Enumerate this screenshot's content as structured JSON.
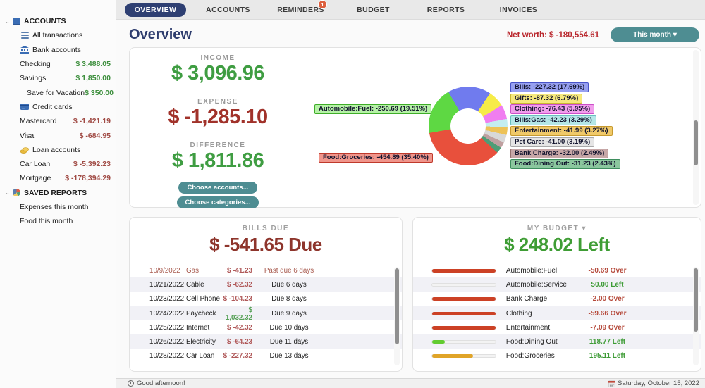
{
  "nav": {
    "tabs": [
      {
        "label": "OVERVIEW",
        "active": true
      },
      {
        "label": "ACCOUNTS"
      },
      {
        "label": "REMINDERS"
      },
      {
        "label": "BUDGET"
      },
      {
        "label": "REPORTS"
      },
      {
        "label": "INVOICES"
      }
    ],
    "reminders_badge": "1"
  },
  "sidebar": {
    "accounts_header": "ACCOUNTS",
    "items": [
      {
        "label": "All transactions"
      },
      {
        "label": "Bank accounts"
      },
      {
        "label": "Checking",
        "value": "$ 3,488.05"
      },
      {
        "label": "Savings",
        "value": "$ 1,850.00"
      },
      {
        "label": "Save for Vacation",
        "value": "$ 350.00"
      },
      {
        "label": "Credit cards"
      },
      {
        "label": "Mastercard",
        "value": "$ -1,421.19"
      },
      {
        "label": "Visa",
        "value": "$ -684.95"
      },
      {
        "label": "Loan accounts"
      },
      {
        "label": "Car Loan",
        "value": "$ -5,392.23"
      },
      {
        "label": "Mortgage",
        "value": "$ -178,394.29"
      }
    ],
    "saved_reports_header": "SAVED REPORTS",
    "reports": [
      "Expenses this month",
      "Food this month"
    ]
  },
  "header": {
    "title": "Overview",
    "net_worth": "Net worth: $ -180,554.61",
    "period_button": "This month ▾"
  },
  "overview": {
    "income_label": "INCOME",
    "income": "$ 3,096.96",
    "expense_label": "EXPENSE",
    "expense": "$ -1,285.10",
    "difference_label": "DIFFERENCE",
    "difference": "$ 1,811.86",
    "choose_accounts": "Choose accounts...",
    "choose_categories": "Choose categories..."
  },
  "chart_data": {
    "type": "pie",
    "title": "",
    "donut": true,
    "start_angle_deg": -30,
    "slices": [
      {
        "name": "Bills",
        "value": -227.32,
        "pct": 17.69,
        "color": "#707bee",
        "label": "Bills: -227.32 (17.69%)",
        "label_bg": "#97a0f0",
        "label_border": "#4853c8"
      },
      {
        "name": "Gifts",
        "value": -87.32,
        "pct": 6.79,
        "color": "#f6ec48",
        "label": "Gifts: -87.32 (6.79%)",
        "label_bg": "#f6e87c",
        "label_border": "#cbb832"
      },
      {
        "name": "Clothing",
        "value": -76.43,
        "pct": 5.95,
        "color": "#f07ef0",
        "label": "Clothing: -76.43 (5.95%)",
        "label_bg": "#f19eec",
        "label_border": "#cc4fc8"
      },
      {
        "name": "Bills:Gas",
        "value": -42.23,
        "pct": 3.29,
        "color": "#c4edf0",
        "label": "Bills:Gas: -42.23 (3.29%)",
        "label_bg": "#b4e7e7",
        "label_border": "#6abfbf"
      },
      {
        "name": "Entertainment",
        "value": -41.99,
        "pct": 3.27,
        "color": "#edc257",
        "label": "Entertainment: -41.99 (3.27%)",
        "label_bg": "#f0c969",
        "label_border": "#c79a2e"
      },
      {
        "name": "Pet Care",
        "value": -41.0,
        "pct": 3.19,
        "color": "#d8d8d8",
        "label": "Pet Care: -41.00 (3.19%)",
        "label_bg": "#e5e5e5",
        "label_border": "#a9a9a9"
      },
      {
        "name": "Bank Charge",
        "value": -32.0,
        "pct": 2.49,
        "color": "#bfa0a0",
        "label": "Bank Charge: -32.00 (2.49%)",
        "label_bg": "#c7a7a7",
        "label_border": "#95716e"
      },
      {
        "name": "Food:Dining Out",
        "value": -31.23,
        "pct": 2.43,
        "color": "#4f9d76",
        "label": "Food:Dining Out: -31.23 (2.43%)",
        "label_bg": "#8bc79e",
        "label_border": "#3e8e5e"
      },
      {
        "name": "Food:Groceries",
        "value": -454.89,
        "pct": 35.4,
        "color": "#e8503c",
        "label": "Food:Groceries: -454.89 (35.40%)",
        "label_bg": "#f0958b",
        "label_border": "#bf392b"
      },
      {
        "name": "Automobile:Fuel",
        "value": -250.69,
        "pct": 19.51,
        "color": "#5ed843",
        "label": "Automobile:Fuel: -250.69 (19.51%)",
        "label_bg": "#b6f1a7",
        "label_border": "#3ead27"
      }
    ]
  },
  "bills": {
    "title": "BILLS DUE",
    "total": "$ -541.65 Due",
    "rows": [
      {
        "date": "10/9/2022",
        "payee": "Gas",
        "amount": "$ -41.23",
        "due": "Past due 6 days",
        "past_due": true
      },
      {
        "date": "10/21/2022",
        "payee": "Cable",
        "amount": "$ -62.32",
        "due": "Due 6 days"
      },
      {
        "date": "10/23/2022",
        "payee": "Cell Phone",
        "amount": "$ -104.23",
        "due": "Due 8 days"
      },
      {
        "date": "10/24/2022",
        "payee": "Paycheck",
        "amount": "$ 1,032.32",
        "due": "Due 9 days",
        "positive": true
      },
      {
        "date": "10/25/2022",
        "payee": "Internet",
        "amount": "$ -42.32",
        "due": "Due 10 days"
      },
      {
        "date": "10/26/2022",
        "payee": "Electricity",
        "amount": "$ -64.23",
        "due": "Due 11 days"
      },
      {
        "date": "10/28/2022",
        "payee": "Car Loan",
        "amount": "$ -227.32",
        "due": "Due 13 days"
      }
    ]
  },
  "budget": {
    "title": "MY BUDGET ▾",
    "total": "$ 248.02 Left",
    "rows": [
      {
        "category": "Automobile:Fuel",
        "value": "-50.69 Over",
        "status": "over",
        "fill_pct": 100,
        "fill_color": "#cc4125"
      },
      {
        "category": "Automobile:Service",
        "value": "50.00 Left",
        "status": "left",
        "fill_pct": 0,
        "fill_color": "#6ed33b"
      },
      {
        "category": "Bank Charge",
        "value": "-2.00 Over",
        "status": "over",
        "fill_pct": 100,
        "fill_color": "#cc4125"
      },
      {
        "category": "Clothing",
        "value": "-59.66 Over",
        "status": "over",
        "fill_pct": 100,
        "fill_color": "#cc4125"
      },
      {
        "category": "Entertainment",
        "value": "-7.09 Over",
        "status": "over",
        "fill_pct": 100,
        "fill_color": "#cc4125"
      },
      {
        "category": "Food:Dining Out",
        "value": "118.77 Left",
        "status": "left",
        "fill_pct": 20,
        "fill_color": "#62cc30"
      },
      {
        "category": "Food:Groceries",
        "value": "195.11 Left",
        "status": "left",
        "fill_pct": 65,
        "fill_color": "#e0a428"
      }
    ]
  },
  "statusbar": {
    "greeting": "Good afternoon!",
    "date": "Saturday, October 15, 2022"
  }
}
